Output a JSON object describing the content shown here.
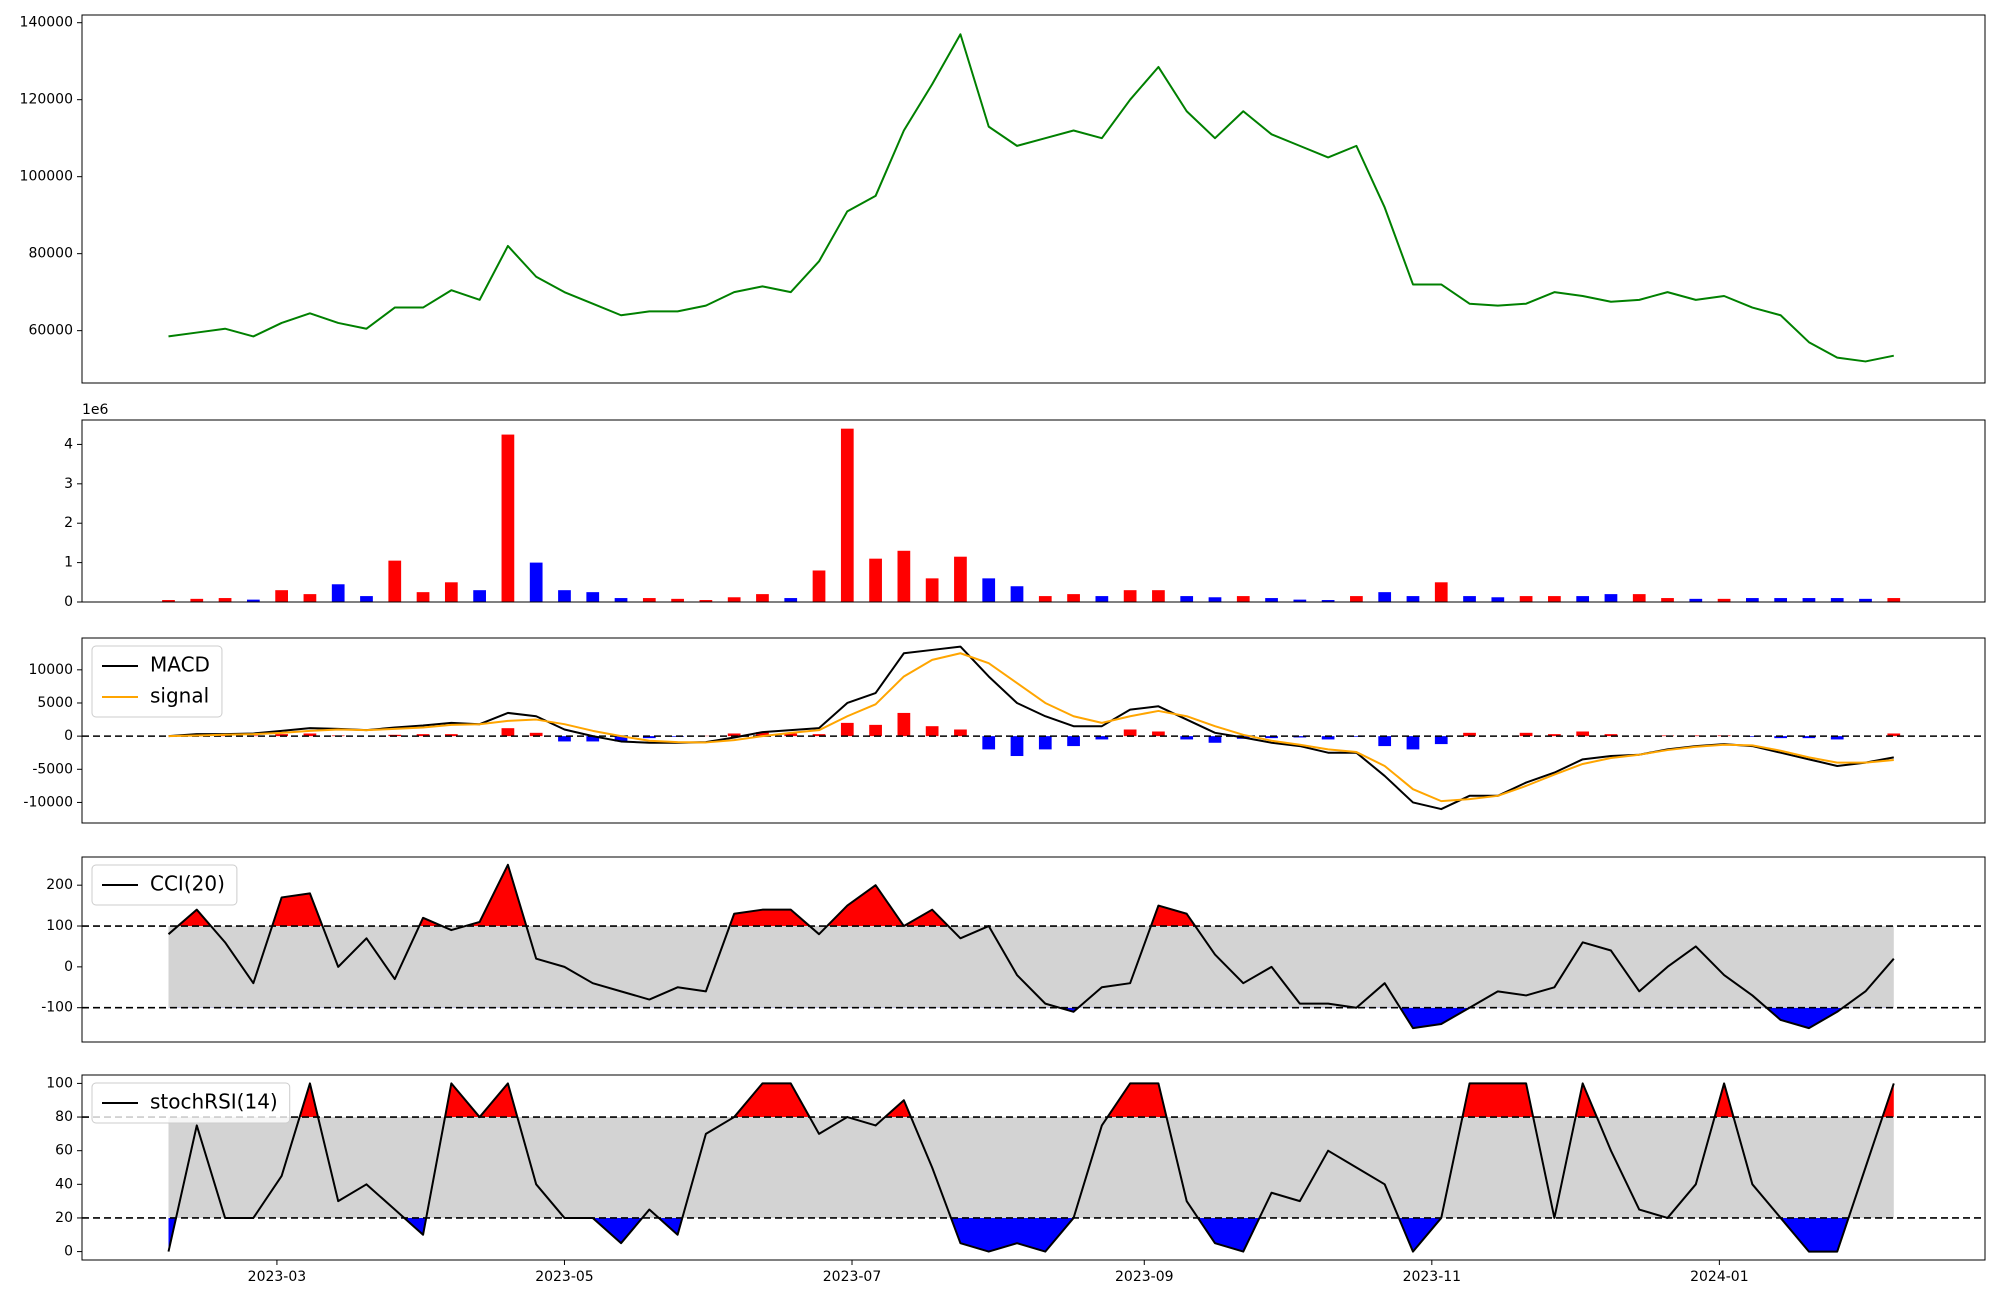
{
  "chart_data": [
    {
      "type": "line",
      "x": [
        19394,
        19400,
        19406,
        19412,
        19418,
        19424,
        19430,
        19436,
        19442,
        19448,
        19454,
        19460,
        19466,
        19472,
        19478,
        19484,
        19490,
        19496,
        19502,
        19508,
        19514,
        19520,
        19526,
        19532,
        19538,
        19544,
        19550,
        19556,
        19562,
        19568,
        19574,
        19580,
        19586,
        19592,
        19598,
        19604,
        19610,
        19616,
        19622,
        19628,
        19634,
        19640,
        19646,
        19652,
        19658,
        19664,
        19670,
        19676,
        19682,
        19688,
        19694,
        19700,
        19706,
        19712,
        19718,
        19724,
        19730,
        19736,
        19742,
        19748,
        19754,
        19760
      ],
      "series": [
        {
          "color": "#008000",
          "values": [
            58500,
            59500,
            60500,
            58500,
            62000,
            64500,
            62000,
            60500,
            66000,
            66000,
            70500,
            68000,
            82000,
            74000,
            70000,
            67000,
            64000,
            65000,
            65000,
            66500,
            70000,
            71500,
            70000,
            78000,
            91000,
            95000,
            112000,
            124000,
            137000,
            113000,
            108000,
            110000,
            112000,
            110000,
            120000,
            128500,
            117000,
            110000,
            117000,
            111000,
            108000,
            105000,
            108000,
            92000,
            72000,
            72000,
            67000,
            66500,
            67000,
            70000,
            69000,
            67500,
            68000,
            70000,
            68000,
            69000,
            66000,
            64000,
            57000,
            53000,
            52000,
            53500
          ]
        }
      ],
      "xlim": [
        19375.65,
        19779.35
      ],
      "ylim": [
        46400,
        142000
      ],
      "yticks": [
        60000,
        80000,
        100000,
        120000,
        140000
      ]
    },
    {
      "type": "bar",
      "x": [
        19394,
        19400,
        19406,
        19412,
        19418,
        19424,
        19430,
        19436,
        19442,
        19448,
        19454,
        19460,
        19466,
        19472,
        19478,
        19484,
        19490,
        19496,
        19502,
        19508,
        19514,
        19520,
        19526,
        19532,
        19538,
        19544,
        19550,
        19556,
        19562,
        19568,
        19574,
        19580,
        19586,
        19592,
        19598,
        19604,
        19610,
        19616,
        19622,
        19628,
        19634,
        19640,
        19646,
        19652,
        19658,
        19664,
        19670,
        19676,
        19682,
        19688,
        19694,
        19700,
        19706,
        19712,
        19718,
        19724,
        19730,
        19736,
        19742,
        19748,
        19754,
        19760
      ],
      "values": [
        0.05,
        0.08,
        0.1,
        0.06,
        0.3,
        0.2,
        0.45,
        0.15,
        1.05,
        0.25,
        0.5,
        0.3,
        4.25,
        1.0,
        0.3,
        0.25,
        0.1,
        0.1,
        0.08,
        0.05,
        0.12,
        0.2,
        0.1,
        0.8,
        4.4,
        1.1,
        1.3,
        0.6,
        1.15,
        0.6,
        0.4,
        0.15,
        0.2,
        0.15,
        0.3,
        0.3,
        0.15,
        0.12,
        0.15,
        0.1,
        0.06,
        0.05,
        0.15,
        0.25,
        0.15,
        0.5,
        0.15,
        0.12,
        0.15,
        0.15,
        0.15,
        0.2,
        0.2,
        0.1,
        0.08,
        0.08,
        0.1,
        0.1,
        0.1,
        0.1,
        0.08,
        0.1
      ],
      "up_color": "#ff0000",
      "down_color": "#0000ff",
      "y_offset_label": "1e6",
      "xlim": [
        19375.65,
        19779.35
      ],
      "ylim": [
        0,
        4.62
      ],
      "yticks": [
        0,
        1,
        2,
        3,
        4
      ]
    },
    {
      "type": "line",
      "x": [
        19394,
        19400,
        19406,
        19412,
        19418,
        19424,
        19430,
        19436,
        19442,
        19448,
        19454,
        19460,
        19466,
        19472,
        19478,
        19484,
        19490,
        19496,
        19502,
        19508,
        19514,
        19520,
        19526,
        19532,
        19538,
        19544,
        19550,
        19556,
        19562,
        19568,
        19574,
        19580,
        19586,
        19592,
        19598,
        19604,
        19610,
        19616,
        19622,
        19628,
        19634,
        19640,
        19646,
        19652,
        19658,
        19664,
        19670,
        19676,
        19682,
        19688,
        19694,
        19700,
        19706,
        19712,
        19718,
        19724,
        19730,
        19736,
        19742,
        19748,
        19754,
        19760
      ],
      "series": [
        {
          "name": "MACD",
          "color": "#000000",
          "values": [
            0,
            300,
            300,
            400,
            800,
            1200,
            1100,
            900,
            1300,
            1600,
            2000,
            1800,
            3500,
            3000,
            1000,
            0,
            -800,
            -1000,
            -1000,
            -900,
            -200,
            600,
            900,
            1200,
            5000,
            6500,
            12500,
            13000,
            13500,
            9000,
            5000,
            3000,
            1500,
            1500,
            4000,
            4500,
            2500,
            500,
            -200,
            -1000,
            -1500,
            -2500,
            -2500,
            -6000,
            -10000,
            -11000,
            -9000,
            -9000,
            -7000,
            -5500,
            -3500,
            -3000,
            -2800,
            -2000,
            -1500,
            -1200,
            -1500,
            -2500,
            -3500,
            -4500,
            -4000,
            -3200
          ]
        },
        {
          "name": "signal",
          "color": "#ffa500",
          "values": [
            0,
            100,
            200,
            300,
            500,
            800,
            1000,
            900,
            1100,
            1300,
            1700,
            1800,
            2300,
            2500,
            1800,
            800,
            0,
            -700,
            -900,
            -950,
            -600,
            0,
            500,
            900,
            3000,
            4800,
            9000,
            11500,
            12500,
            11000,
            8000,
            5000,
            3000,
            2000,
            3000,
            3800,
            3000,
            1500,
            200,
            -700,
            -1300,
            -2000,
            -2400,
            -4500,
            -8000,
            -9800,
            -9500,
            -9000,
            -7500,
            -5800,
            -4200,
            -3300,
            -2800,
            -2100,
            -1600,
            -1300,
            -1400,
            -2200,
            -3200,
            -4000,
            -4000,
            -3600
          ]
        }
      ],
      "histogram": {
        "up_color": "#ff0000",
        "down_color": "#0000ff",
        "values": [
          0,
          200,
          100,
          100,
          300,
          400,
          100,
          0,
          200,
          300,
          300,
          0,
          1200,
          500,
          -800,
          -800,
          -800,
          -300,
          -100,
          50,
          400,
          600,
          400,
          300,
          2000,
          1700,
          3500,
          1500,
          1000,
          -2000,
          -3000,
          -2000,
          -1500,
          -500,
          1000,
          700,
          -500,
          -1000,
          -400,
          -300,
          -200,
          -500,
          -100,
          -1500,
          -2000,
          -1200,
          500,
          0,
          500,
          300,
          700,
          300,
          0,
          100,
          100,
          100,
          -100,
          -300,
          -300,
          -500,
          0,
          400
        ]
      },
      "hlines": [
        0
      ],
      "legend": "upper left",
      "xlim": [
        19375.65,
        19779.35
      ],
      "ylim": [
        -13100,
        14800
      ],
      "yticks": [
        -10000,
        -5000,
        0,
        5000,
        10000
      ]
    },
    {
      "type": "line",
      "x": [
        19394,
        19400,
        19406,
        19412,
        19418,
        19424,
        19430,
        19436,
        19442,
        19448,
        19454,
        19460,
        19466,
        19472,
        19478,
        19484,
        19490,
        19496,
        19502,
        19508,
        19514,
        19520,
        19526,
        19532,
        19538,
        19544,
        19550,
        19556,
        19562,
        19568,
        19574,
        19580,
        19586,
        19592,
        19598,
        19604,
        19610,
        19616,
        19622,
        19628,
        19634,
        19640,
        19646,
        19652,
        19658,
        19664,
        19670,
        19676,
        19682,
        19688,
        19694,
        19700,
        19706,
        19712,
        19718,
        19724,
        19730,
        19736,
        19742,
        19748,
        19754,
        19760
      ],
      "series": [
        {
          "name": "CCI(20)",
          "color": "#000000",
          "values": [
            80,
            140,
            60,
            -40,
            170,
            180,
            0,
            70,
            -30,
            120,
            90,
            110,
            250,
            20,
            0,
            -40,
            -60,
            -80,
            -50,
            -60,
            130,
            140,
            140,
            80,
            150,
            200,
            100,
            140,
            70,
            100,
            -20,
            -90,
            -110,
            -50,
            -40,
            150,
            130,
            30,
            -40,
            0,
            -90,
            -90,
            -100,
            -40,
            -150,
            -140,
            -100,
            -60,
            -70,
            -50,
            60,
            40,
            -60,
            0,
            50,
            -20,
            -70,
            -130,
            -150,
            -110,
            -60,
            20
          ]
        }
      ],
      "hlines": [
        -100,
        100
      ],
      "band_color": "#d3d3d3",
      "above_color": "#ff0000",
      "below_color": "#0000ff",
      "legend": "upper left",
      "xlim": [
        19375.65,
        19779.35
      ],
      "ylim": [
        -184,
        269
      ],
      "yticks": [
        -100,
        0,
        100,
        200
      ]
    },
    {
      "type": "line",
      "x": [
        19394,
        19400,
        19406,
        19412,
        19418,
        19424,
        19430,
        19436,
        19442,
        19448,
        19454,
        19460,
        19466,
        19472,
        19478,
        19484,
        19490,
        19496,
        19502,
        19508,
        19514,
        19520,
        19526,
        19532,
        19538,
        19544,
        19550,
        19556,
        19562,
        19568,
        19574,
        19580,
        19586,
        19592,
        19598,
        19604,
        19610,
        19616,
        19622,
        19628,
        19634,
        19640,
        19646,
        19652,
        19658,
        19664,
        19670,
        19676,
        19682,
        19688,
        19694,
        19700,
        19706,
        19712,
        19718,
        19724,
        19730,
        19736,
        19742,
        19748,
        19754,
        19760
      ],
      "series": [
        {
          "name": "stochRSI(14)",
          "color": "#000000",
          "values": [
            0,
            75,
            20,
            20,
            45,
            100,
            30,
            40,
            25,
            10,
            100,
            80,
            100,
            40,
            20,
            20,
            5,
            25,
            10,
            70,
            80,
            100,
            100,
            70,
            80,
            75,
            90,
            50,
            5,
            0,
            5,
            0,
            20,
            75,
            100,
            100,
            30,
            5,
            0,
            35,
            30,
            60,
            50,
            40,
            0,
            20,
            100,
            100,
            100,
            20,
            100,
            60,
            25,
            20,
            40,
            100,
            40,
            20,
            0,
            0,
            50,
            100
          ]
        }
      ],
      "hlines": [
        20,
        80
      ],
      "band_color": "#d3d3d3",
      "above_color": "#ff0000",
      "below_color": "#0000ff",
      "legend": "upper left",
      "xlim": [
        19375.65,
        19779.35
      ],
      "ylim": [
        -5,
        105
      ],
      "yticks": [
        0,
        20,
        40,
        60,
        80,
        100
      ],
      "xticks": [
        {
          "value": 19417,
          "label": "2023-03"
        },
        {
          "value": 19478,
          "label": "2023-05"
        },
        {
          "value": 19539,
          "label": "2023-07"
        },
        {
          "value": 19601,
          "label": "2023-09"
        },
        {
          "value": 19662,
          "label": "2023-11"
        },
        {
          "value": 19723,
          "label": "2024-01"
        }
      ]
    }
  ]
}
